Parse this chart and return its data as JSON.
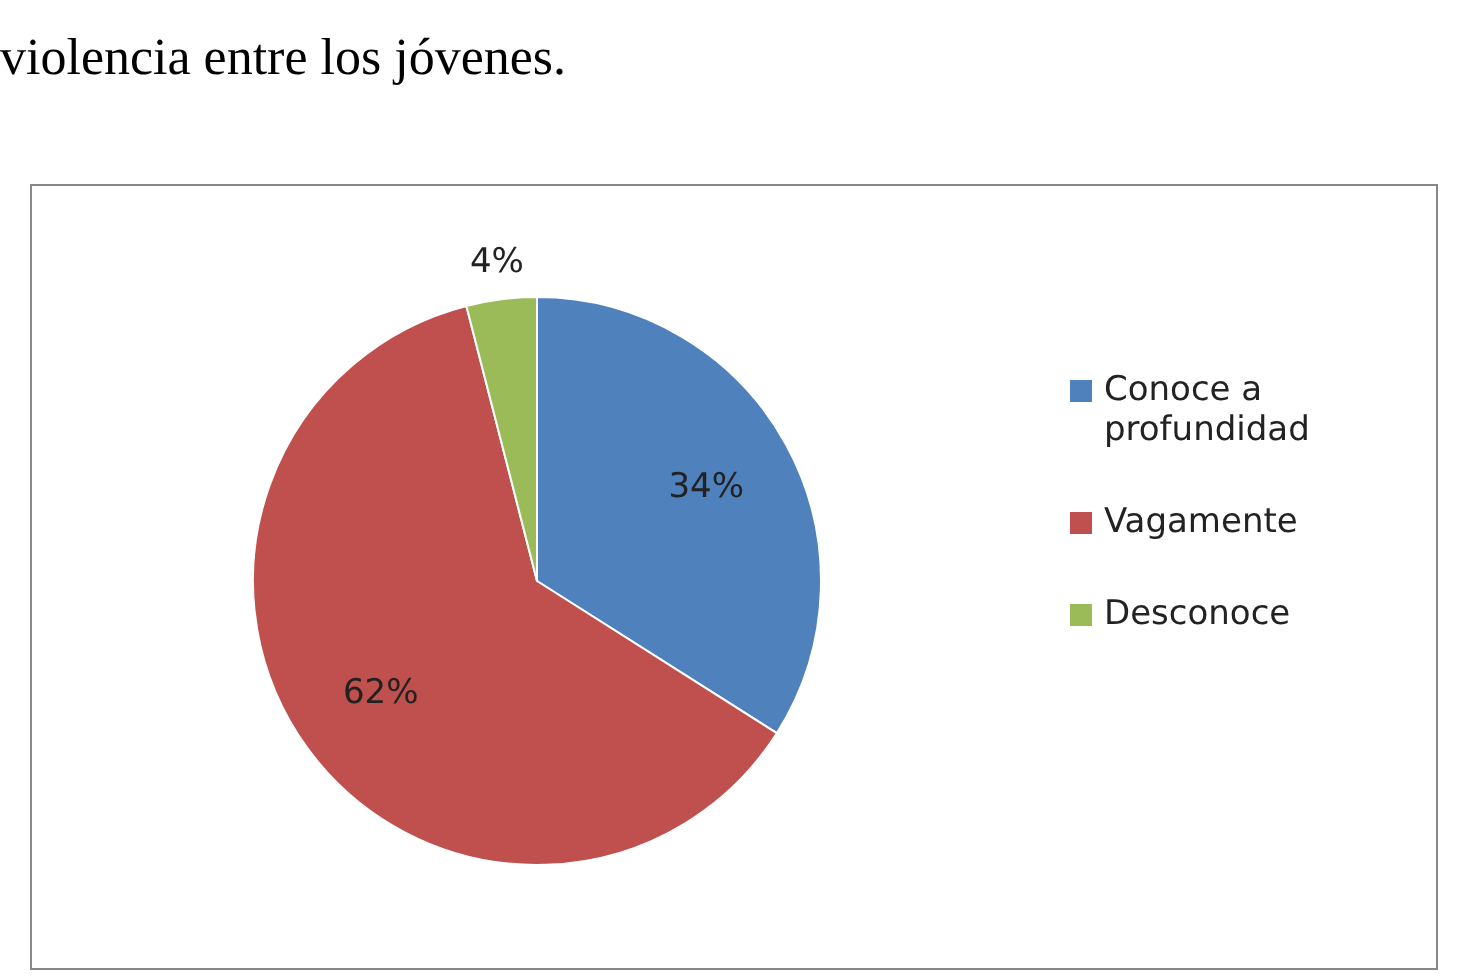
{
  "chart_data": {
    "type": "pie",
    "title": "violencia entre los jóvenes.",
    "categories": [
      "Conoce a profundidad",
      "Vagamente",
      "Desconoce"
    ],
    "values": [
      34,
      62,
      4
    ],
    "colors": [
      "#4f81bd",
      "#c0504d",
      "#9bbb59"
    ],
    "value_labels": [
      "34%",
      "62%",
      "4%"
    ],
    "legend": "right"
  }
}
